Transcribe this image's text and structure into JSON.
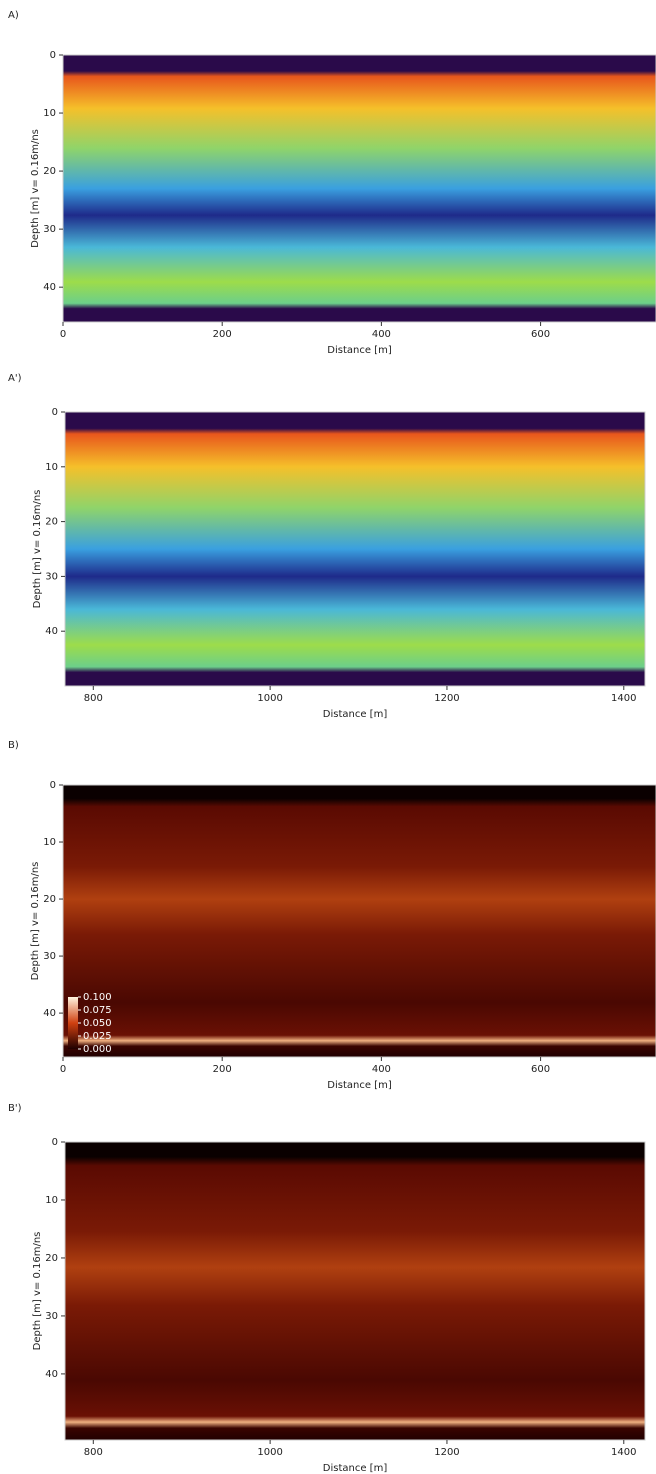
{
  "chart_data": [
    {
      "type": "image",
      "panel_label": "A)",
      "xlabel": "Distance [m]",
      "ylabel": "Depth [m] v= 0.16m/ns",
      "colormap": "jet",
      "xlim": [
        0,
        745
      ],
      "ylim": [
        0,
        46
      ],
      "xticks": [
        0,
        200,
        400,
        600
      ],
      "yticks": [
        0,
        10,
        20,
        30,
        40
      ]
    },
    {
      "type": "image",
      "panel_label": "A')",
      "xlabel": "Distance [m]",
      "ylabel": "Depth [m] v= 0.16m/ns",
      "colormap": "jet",
      "xlim": [
        768,
        1424
      ],
      "ylim": [
        0,
        50
      ],
      "xticks": [
        800,
        1000,
        1200,
        1400
      ],
      "yticks": [
        0,
        10,
        20,
        30,
        40
      ]
    },
    {
      "type": "image",
      "panel_label": "B)",
      "xlabel": "Distance [m]",
      "ylabel": "Depth [m] v= 0.16m/ns",
      "colormap": "hot",
      "xlim": [
        0,
        745
      ],
      "ylim": [
        0,
        47.7
      ],
      "xticks": [
        0,
        200,
        400,
        600
      ],
      "yticks": [
        0,
        10,
        20,
        30,
        40
      ],
      "colorbar_lim": [
        0,
        0.1
      ],
      "colorbar_ticks": [
        {
          "value": 0.1,
          "label": "0.100"
        },
        {
          "value": 0.075,
          "label": "0.075"
        },
        {
          "value": 0.05,
          "label": "0.050"
        },
        {
          "value": 0.025,
          "label": "0.025"
        },
        {
          "value": 0,
          "label": "0.000"
        }
      ]
    },
    {
      "type": "image",
      "panel_label": "B')",
      "xlabel": "Distance [m]",
      "ylabel": "Depth [m] v= 0.16m/ns",
      "colormap": "hot",
      "xlim": [
        768,
        1424
      ],
      "ylim": [
        0,
        51.4
      ],
      "xticks": [
        800,
        1000,
        1200,
        1400
      ],
      "yticks": [
        0,
        10,
        20,
        30,
        40
      ]
    }
  ]
}
